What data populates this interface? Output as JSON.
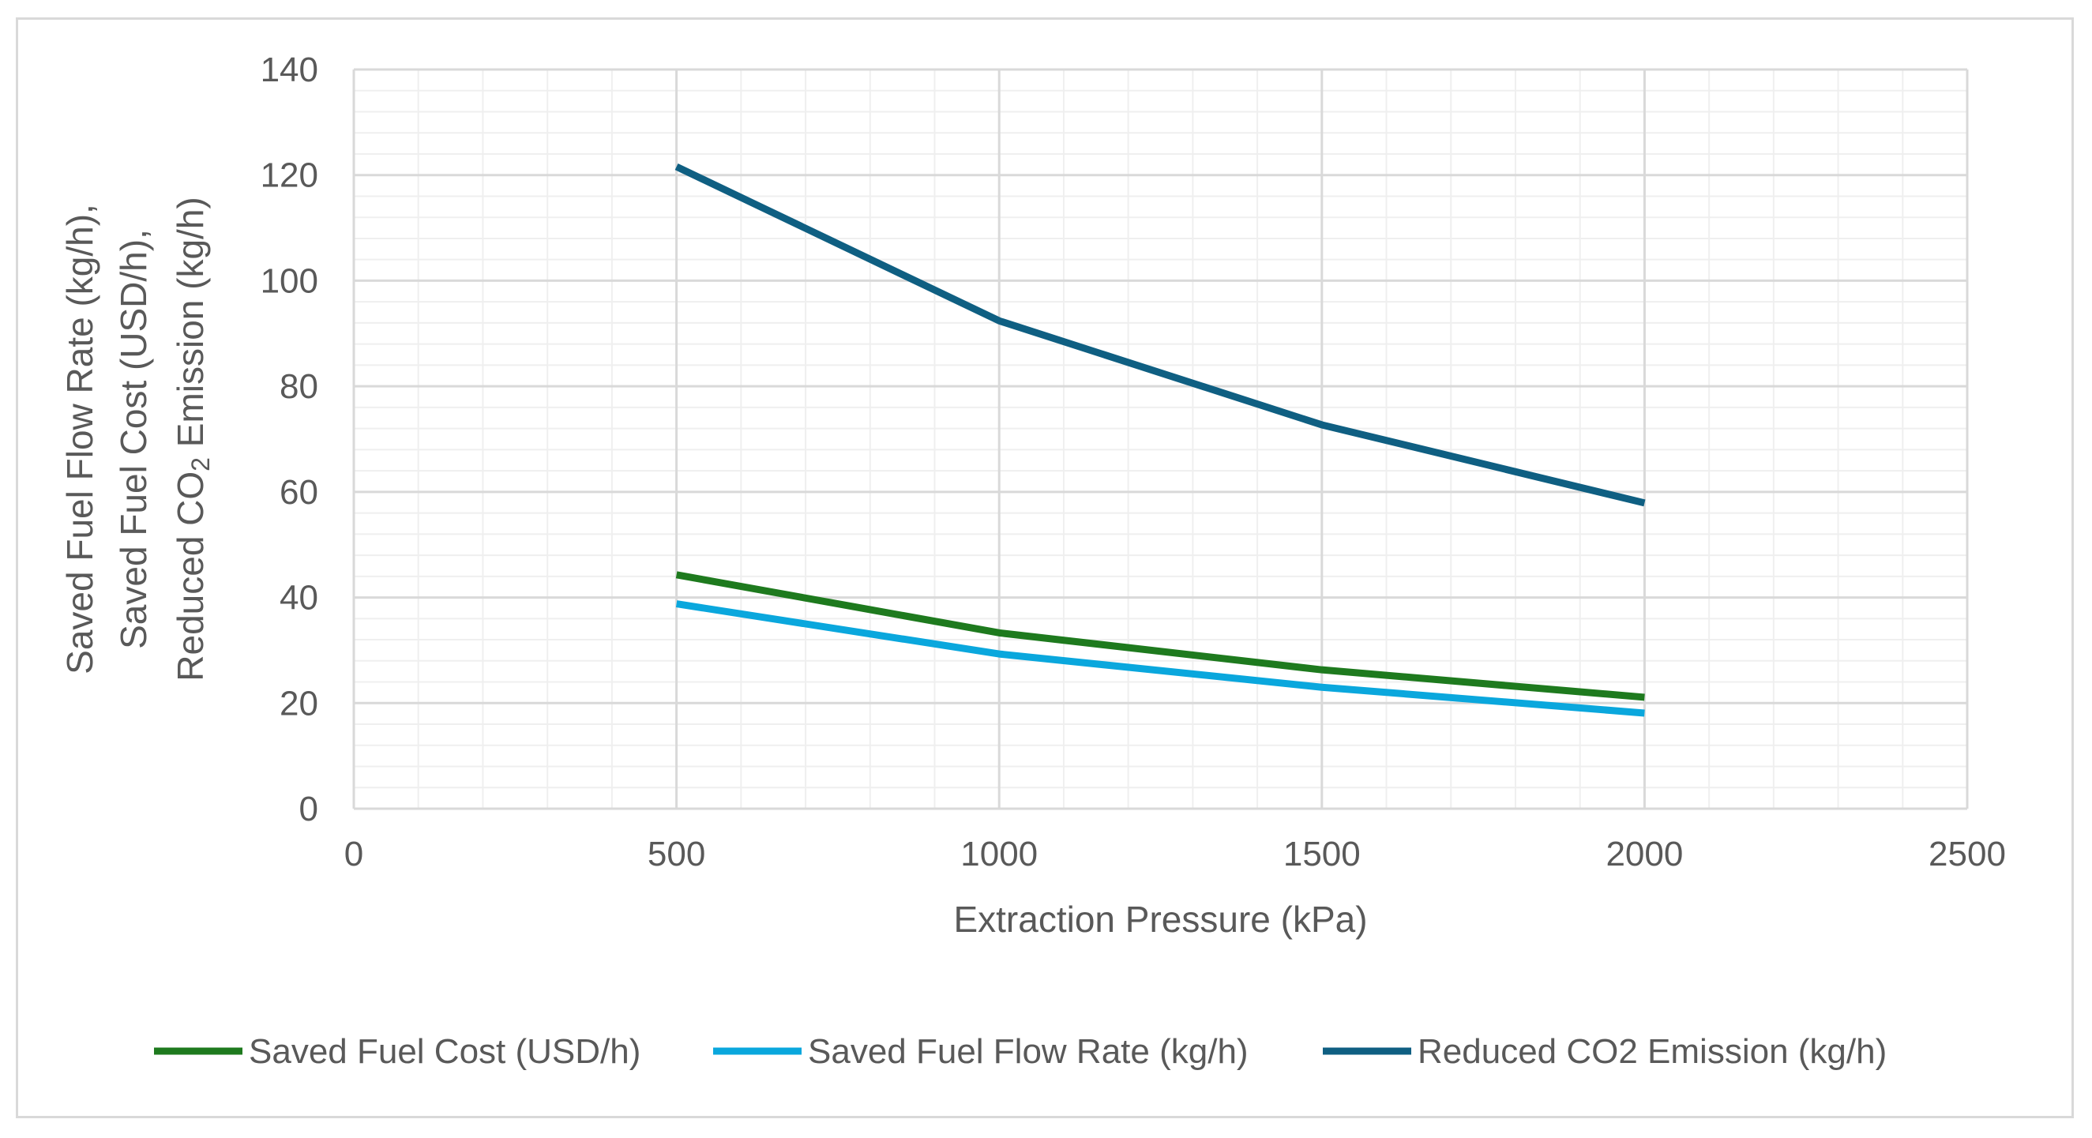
{
  "chart_data": {
    "type": "line",
    "title": "",
    "xlabel": "Extraction Pressure (kPa)",
    "ylabel_lines": [
      "Saved Fuel Flow Rate (kg/h),",
      "Saved Fuel Cost (USD/h),"
    ],
    "ylabel_line3": {
      "before": "Reduced CO",
      "subscript": "2",
      "after": " Emission (kg/h)"
    },
    "xlim": [
      0,
      2500
    ],
    "ylim": [
      0,
      140
    ],
    "x_ticks": [
      0,
      500,
      1000,
      1500,
      2000,
      2500
    ],
    "y_ticks": [
      0,
      20,
      40,
      60,
      80,
      100,
      120,
      140
    ],
    "x": [
      500,
      1000,
      1500,
      2000
    ],
    "series": [
      {
        "name": "Saved Fuel Cost (USD/h)",
        "color": "#1e7a1e",
        "values": [
          44.3,
          33.3,
          26.3,
          21.1
        ]
      },
      {
        "name": "Saved Fuel Flow Rate (kg/h)",
        "color": "#0aa7dd",
        "values": [
          38.8,
          29.3,
          23.0,
          18.1
        ]
      },
      {
        "name": "Reduced CO2 Emission (kg/h)",
        "color": "#0f5f82",
        "values": [
          121.6,
          92.4,
          72.7,
          57.9
        ]
      }
    ],
    "grid": true,
    "legend_position": "bottom"
  }
}
